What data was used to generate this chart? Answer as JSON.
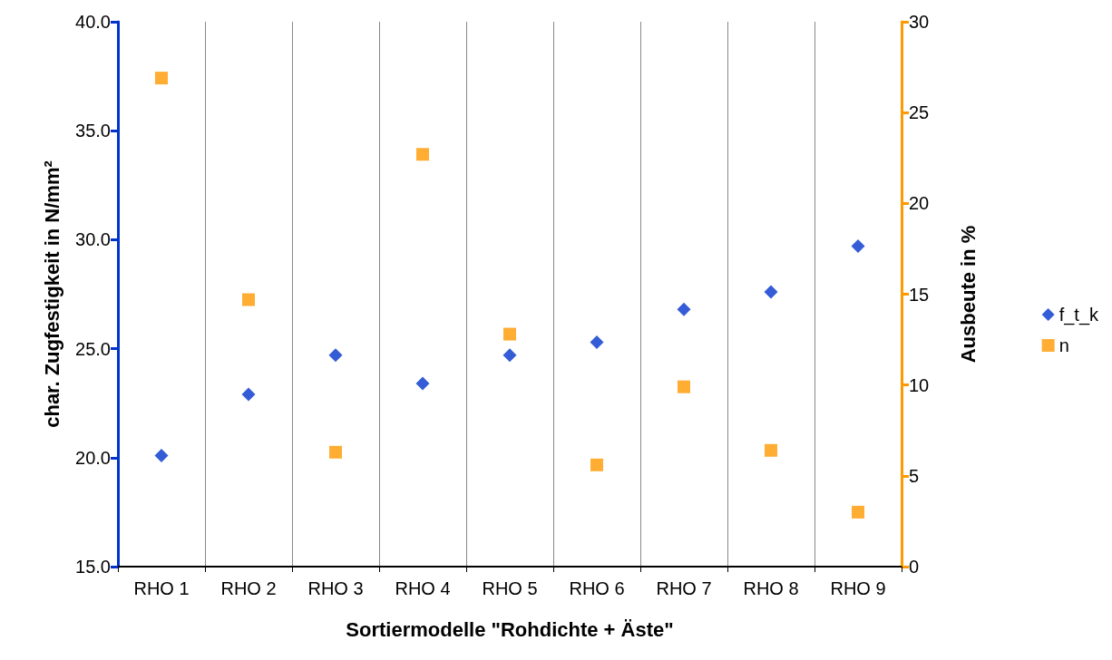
{
  "chart_data": {
    "type": "scatter",
    "xlabel": "Sortiermodelle \"Rohdichte + Äste\"",
    "ylabel": "char. Zugfestigkeit in N/mm²",
    "y2label": "Ausbeute in %",
    "categories": [
      "RHO 1",
      "RHO 2",
      "RHO 3",
      "RHO 4",
      "RHO 5",
      "RHO 6",
      "RHO 7",
      "RHO 8",
      "RHO 9"
    ],
    "series": [
      {
        "name": "f_t_k",
        "color": "#0033cc",
        "marker": "diamond",
        "values": [
          20.1,
          22.9,
          24.7,
          23.4,
          24.7,
          25.3,
          26.8,
          27.6,
          29.7
        ]
      },
      {
        "name": "n",
        "color": "#ff9900",
        "marker": "square",
        "axis": "y2",
        "values": [
          26.9,
          14.7,
          6.3,
          22.7,
          12.8,
          5.6,
          9.9,
          6.4,
          3.0
        ]
      }
    ],
    "ylim": [
      15,
      40
    ],
    "yticks": [
      {
        "value": 15,
        "label": "15.0"
      },
      {
        "value": 20,
        "label": "20.0"
      },
      {
        "value": 25,
        "label": "25.0"
      },
      {
        "value": 30,
        "label": "30.0"
      },
      {
        "value": 35,
        "label": "35.0"
      },
      {
        "value": 40,
        "label": "40.0"
      }
    ],
    "y2lim": [
      0,
      30
    ],
    "y2ticks": [
      0,
      5,
      10,
      15,
      20,
      25,
      30
    ],
    "grid": "x",
    "legend": "right"
  }
}
